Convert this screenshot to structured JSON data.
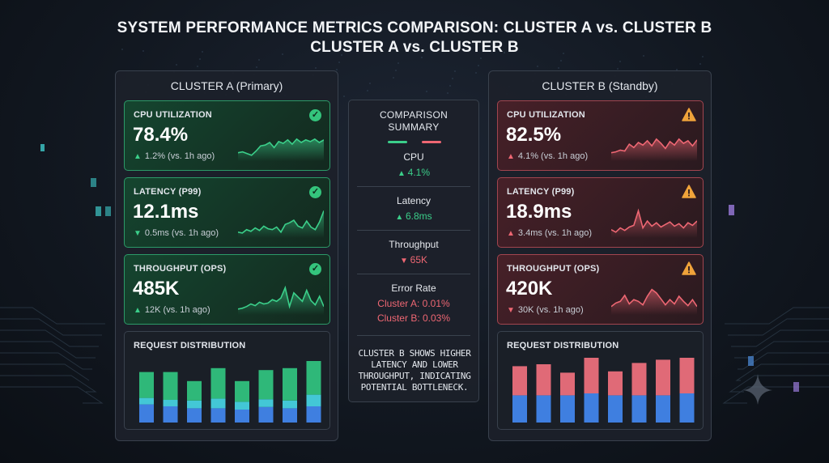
{
  "title_line1": "SYSTEM PERFORMANCE METRICS COMPARISON: CLUSTER A vs. CLUSTER B",
  "title_line2": "CLUSTER A vs. CLUSTER B",
  "colors": {
    "good": "#3bcf8a",
    "bad": "#ee6773",
    "bar_top_a": "#2fb879",
    "bar_mid_a": "#43c7d6",
    "bar_base": "#3f7fe0",
    "bar_top_b": "#e06a77"
  },
  "cluster_a": {
    "name": "CLUSTER A (Primary)",
    "cards": [
      {
        "label": "CPU UTILIZATION",
        "value": "78.4%",
        "delta": "1.2% (vs. 1h ago)",
        "direction": "up",
        "status": "ok",
        "spark": [
          30,
          29,
          31,
          33,
          28,
          22,
          21,
          18,
          24,
          17,
          19,
          15,
          20,
          14,
          18,
          15,
          17,
          14,
          18,
          15
        ]
      },
      {
        "label": "LATENCY (P99)",
        "value": "12.1ms",
        "delta": "0.5ms (vs. 1h ago)",
        "direction": "down",
        "status": "ok",
        "spark": [
          33,
          34,
          30,
          32,
          28,
          31,
          26,
          29,
          30,
          27,
          33,
          24,
          22,
          19,
          26,
          28,
          20,
          27,
          30,
          21,
          8
        ]
      },
      {
        "label": "THROUGHPUT (OPS)",
        "value": "485K",
        "delta": "12K (vs. 1h ago)",
        "direction": "up",
        "status": "ok",
        "spark": [
          33,
          32,
          30,
          27,
          29,
          25,
          27,
          26,
          22,
          24,
          20,
          8,
          30,
          14,
          19,
          24,
          11,
          23,
          28,
          18,
          30
        ]
      }
    ],
    "distribution": {
      "label": "REQUEST DISTRIBUTION",
      "bars": [
        [
          0.4,
          0.1,
          0.28
        ],
        [
          0.43,
          0.1,
          0.25
        ],
        [
          0.3,
          0.12,
          0.22
        ],
        [
          0.47,
          0.15,
          0.22
        ],
        [
          0.32,
          0.12,
          0.2
        ],
        [
          0.45,
          0.12,
          0.24
        ],
        [
          0.5,
          0.12,
          0.22
        ],
        [
          0.52,
          0.18,
          0.25
        ]
      ]
    }
  },
  "cluster_b": {
    "name": "CLUSTER B (Standby)",
    "cards": [
      {
        "label": "CPU UTILIZATION",
        "value": "82.5%",
        "delta": "4.1% (vs. 1h ago)",
        "direction": "up",
        "status": "warn",
        "spark": [
          30,
          29,
          27,
          28,
          20,
          24,
          18,
          21,
          16,
          22,
          14,
          19,
          25,
          17,
          21,
          14,
          19,
          16,
          22,
          15
        ]
      },
      {
        "label": "LATENCY (P99)",
        "value": "18.9ms",
        "delta": "3.4ms (vs. 1h ago)",
        "direction": "up",
        "status": "warn",
        "spark": [
          30,
          33,
          28,
          31,
          27,
          25,
          8,
          28,
          20,
          26,
          22,
          27,
          24,
          21,
          26,
          23,
          28,
          22,
          25,
          20
        ]
      },
      {
        "label": "THROUGHPUT (OPS)",
        "value": "420K",
        "delta": "30K (vs. 1h ago)",
        "direction": "down",
        "status": "warn",
        "spark": [
          30,
          26,
          24,
          17,
          27,
          22,
          24,
          28,
          18,
          10,
          14,
          21,
          28,
          22,
          27,
          18,
          24,
          29,
          22,
          30
        ]
      }
    ],
    "distribution": {
      "label": "REQUEST DISTRIBUTION",
      "bars": [
        [
          0.45,
          0.0,
          0.42
        ],
        [
          0.48,
          0.0,
          0.42
        ],
        [
          0.35,
          0.0,
          0.42
        ],
        [
          0.55,
          0.0,
          0.45
        ],
        [
          0.37,
          0.0,
          0.42
        ],
        [
          0.5,
          0.0,
          0.42
        ],
        [
          0.55,
          0.0,
          0.42
        ],
        [
          0.6,
          0.0,
          0.45
        ]
      ]
    }
  },
  "summary": {
    "title_line1": "COMPARISON",
    "title_line2": "SUMMARY",
    "cpu_label": "CPU",
    "cpu_value": "4.1%",
    "latency_label": "Latency",
    "latency_value": "6.8ms",
    "throughput_label": "Throughput",
    "throughput_value": "65K",
    "error_label": "Error Rate",
    "error_a": "Cluster A: 0.01%",
    "error_b": "Cluster B: 0.03%",
    "note_line1": "CLUSTER B SHOWS HIGHER",
    "note_line2": "LATENCY AND LOWER",
    "note_line3": "THROUGHPUT, INDICATING",
    "note_line4": "POTENTIAL BOTTLENECK."
  }
}
